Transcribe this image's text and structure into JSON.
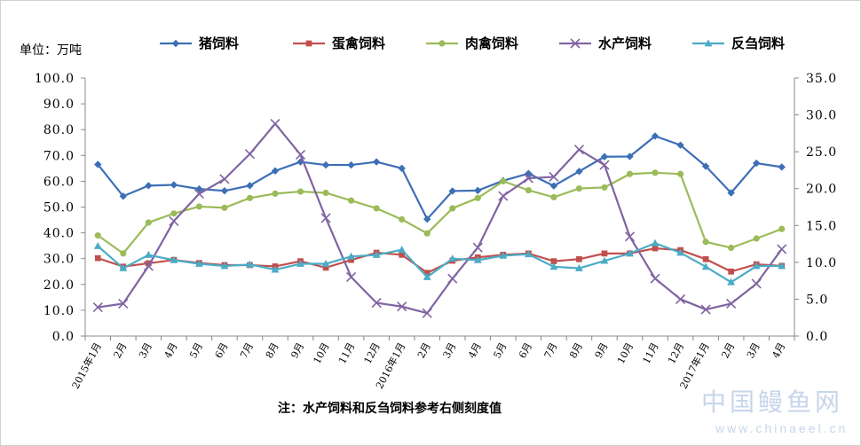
{
  "chart_data": {
    "type": "line",
    "unit_label": "单位：万吨",
    "note": "注：水产饲料和反刍饲料参考右侧刻度值",
    "categories": [
      "2015年1月",
      "2月",
      "3月",
      "4月",
      "5月",
      "6月",
      "7月",
      "8月",
      "9月",
      "10月",
      "11月",
      "12月",
      "2016年1月",
      "2月",
      "3月",
      "4月",
      "5月",
      "6月",
      "7月",
      "8月",
      "9月",
      "10月",
      "11月",
      "12月",
      "2017年1月",
      "2月",
      "3月",
      "4月"
    ],
    "y_left": {
      "min": 0,
      "max": 100,
      "step": 10,
      "tick_labels": [
        "0.0",
        "10.0",
        "20.0",
        "30.0",
        "40.0",
        "50.0",
        "60.0",
        "70.0",
        "80.0",
        "90.0",
        "100.0"
      ]
    },
    "y_right": {
      "min": 0,
      "max": 35,
      "step": 5,
      "tick_labels": [
        "0.0",
        "5.0",
        "10.0",
        "15.0",
        "20.0",
        "25.0",
        "30.0",
        "35.0"
      ]
    },
    "grid": false,
    "legend_position": "top",
    "series": [
      {
        "name": "猪饲料",
        "axis": "left",
        "color": "#3d6fb6",
        "marker": "diamond",
        "values": [
          66.5,
          54.2,
          58.3,
          58.6,
          57.0,
          56.3,
          58.3,
          64.0,
          67.5,
          66.3,
          66.3,
          67.5,
          65.0,
          45.3,
          56.2,
          56.4,
          60.2,
          63.0,
          58.2,
          63.8,
          69.5,
          69.6,
          77.5,
          74.0,
          65.8,
          55.5,
          67.0,
          65.5
        ]
      },
      {
        "name": "蛋禽饲料",
        "axis": "left",
        "color": "#c0504d",
        "marker": "square",
        "values": [
          30.2,
          26.9,
          28.2,
          29.5,
          28.3,
          27.5,
          27.5,
          27.0,
          29.0,
          26.5,
          29.5,
          32.3,
          31.5,
          24.5,
          29.2,
          30.5,
          31.5,
          32.0,
          29.0,
          29.8,
          32.0,
          32.0,
          34.0,
          33.3,
          29.8,
          25.0,
          27.8,
          27.2
        ]
      },
      {
        "name": "肉禽饲料",
        "axis": "left",
        "color": "#9bbb59",
        "marker": "circle",
        "values": [
          39.0,
          32.0,
          44.0,
          47.5,
          50.2,
          49.7,
          53.5,
          55.2,
          56.0,
          55.5,
          52.5,
          49.5,
          45.2,
          39.8,
          49.5,
          53.5,
          60.0,
          56.5,
          53.8,
          57.2,
          57.6,
          62.8,
          63.3,
          62.8,
          36.5,
          34.2,
          37.8,
          41.5
        ]
      },
      {
        "name": "水产饲料",
        "axis": "right",
        "color": "#8064a2",
        "marker": "x",
        "values": [
          3.9,
          4.4,
          9.5,
          15.6,
          19.3,
          21.3,
          24.7,
          28.8,
          24.6,
          16.0,
          8.0,
          4.5,
          4.0,
          3.1,
          7.8,
          12.0,
          19.0,
          21.4,
          21.6,
          25.3,
          23.2,
          13.5,
          7.8,
          5.0,
          3.6,
          4.4,
          7.1,
          11.8
        ]
      },
      {
        "name": "反刍饲料",
        "axis": "right",
        "color": "#4bacc6",
        "marker": "triangle",
        "values": [
          12.2,
          9.2,
          11.0,
          10.3,
          9.8,
          9.5,
          9.7,
          9.0,
          9.8,
          9.8,
          10.8,
          11.0,
          11.7,
          8.0,
          10.5,
          10.3,
          10.9,
          11.1,
          9.4,
          9.2,
          10.2,
          11.2,
          12.6,
          11.3,
          9.4,
          7.3,
          9.5,
          9.5
        ]
      }
    ]
  },
  "watermark": {
    "text": "中国鳗鱼网",
    "url": "www.chinaeel.cn"
  }
}
